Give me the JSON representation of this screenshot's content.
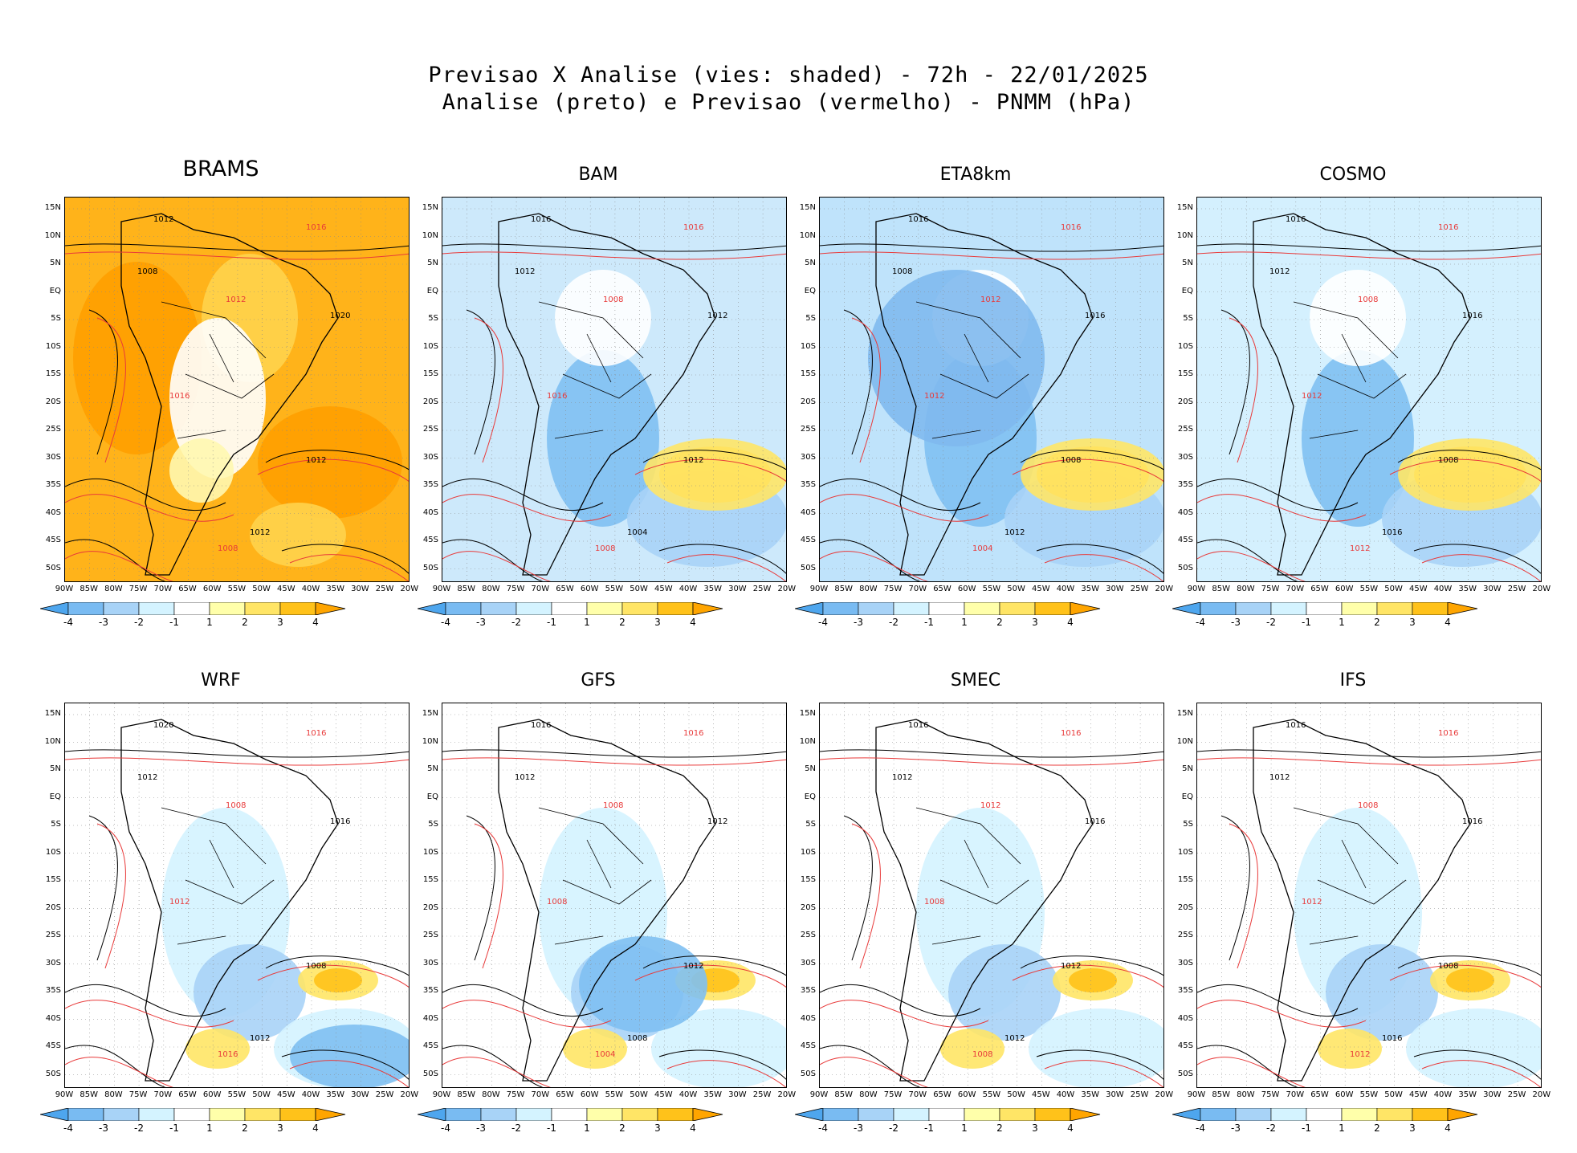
{
  "header": {
    "line1": "Previsao X Analise (vies: shaded) - 72h - 22/01/2025",
    "line2": "Analise (preto) e Previsao (vermelho) - PNMM (hPa)"
  },
  "axes": {
    "lat_labels": [
      "15N",
      "10N",
      "5N",
      "EQ",
      "5S",
      "10S",
      "15S",
      "20S",
      "25S",
      "30S",
      "35S",
      "40S",
      "45S",
      "50S"
    ],
    "lon_labels": [
      "90W",
      "85W",
      "80W",
      "75W",
      "70W",
      "65W",
      "60W",
      "55W",
      "50W",
      "45W",
      "40W",
      "35W",
      "30W",
      "25W",
      "20W"
    ]
  },
  "colorbar": {
    "labels": [
      "-4",
      "-3",
      "-2",
      "-1",
      "1",
      "2",
      "3",
      "4"
    ],
    "colors": [
      "#4ea6ee",
      "#79bbf2",
      "#a8d3f7",
      "#d4f3ff",
      "#ffffff",
      "#ffffaa",
      "#ffe566",
      "#ffc21a",
      "#ffa500"
    ]
  },
  "colors": {
    "analysis": "#000000",
    "forecast": "#e83a3a",
    "ocean_bias": "#d4f3ff"
  },
  "panels": [
    {
      "model": "BRAMS",
      "base": "#ffb31a",
      "isobars": [
        "1012",
        "1016",
        "1008",
        "1012",
        "1020",
        "1016",
        "1012",
        "1008",
        "1012"
      ]
    },
    {
      "model": "BAM",
      "base": "#cde9fb",
      "isobars": [
        "1016",
        "1016",
        "1012",
        "1008",
        "1012",
        "1016",
        "1012",
        "1008",
        "1004"
      ]
    },
    {
      "model": "ETA8km",
      "base": "#bfe3fb",
      "isobars": [
        "1016",
        "1016",
        "1008",
        "1012",
        "1016",
        "1012",
        "1008",
        "1004",
        "1012"
      ]
    },
    {
      "model": "COSMO",
      "base": "#d4f0fe",
      "isobars": [
        "1016",
        "1016",
        "1012",
        "1008",
        "1016",
        "1012",
        "1008",
        "1012",
        "1016"
      ]
    },
    {
      "model": "WRF",
      "base": "#ffffff",
      "isobars": [
        "1020",
        "1016",
        "1012",
        "1008",
        "1016",
        "1012",
        "1008",
        "1016",
        "1012"
      ]
    },
    {
      "model": "GFS",
      "base": "#ffffff",
      "isobars": [
        "1016",
        "1016",
        "1012",
        "1008",
        "1012",
        "1008",
        "1012",
        "1004",
        "1008"
      ]
    },
    {
      "model": "SMEC",
      "base": "#ffffff",
      "isobars": [
        "1016",
        "1016",
        "1012",
        "1012",
        "1016",
        "1008",
        "1012",
        "1008",
        "1012"
      ]
    },
    {
      "model": "IFS",
      "base": "#ffffff",
      "isobars": [
        "1016",
        "1016",
        "1012",
        "1008",
        "1016",
        "1012",
        "1008",
        "1012",
        "1016"
      ]
    }
  ]
}
